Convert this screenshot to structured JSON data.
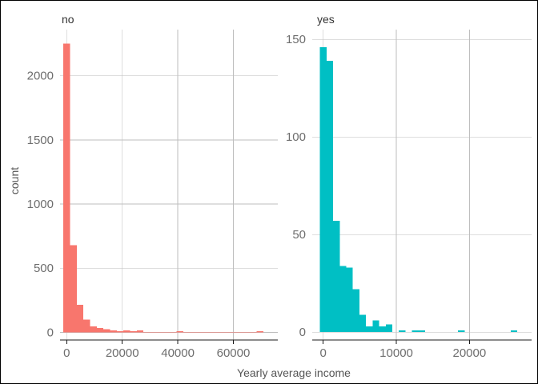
{
  "chart_data": [
    {
      "type": "bar",
      "panel": "no",
      "xlabel": "Yearly average income",
      "ylabel": "count",
      "color": "#F8766D",
      "bin_width": 2400,
      "bin_centers": [
        0,
        2400,
        4800,
        7200,
        9600,
        12000,
        14400,
        16800,
        19200,
        21600,
        24000,
        26400,
        28800,
        31200,
        33600,
        36000,
        38400,
        40800,
        43200,
        45600,
        48000,
        50400,
        52800,
        55200,
        57600,
        60000,
        62400,
        64800,
        67200,
        69600,
        72000
      ],
      "values": [
        2250,
        680,
        215,
        100,
        45,
        35,
        25,
        15,
        10,
        15,
        8,
        15,
        3,
        2,
        2,
        2,
        2,
        8,
        2,
        1,
        1,
        1,
        1,
        1,
        1,
        1,
        1,
        1,
        2,
        8,
        0
      ],
      "xticks": [
        0,
        20000,
        40000,
        60000
      ],
      "xtick_labels": [
        "0",
        "20000",
        "40000",
        "60000"
      ],
      "yticks": [
        0,
        500,
        1000,
        1500,
        2000
      ],
      "ytick_labels": [
        "0",
        "500",
        "1000",
        "1500",
        "2000"
      ],
      "xlim": [
        -2400,
        76000
      ],
      "ylim": [
        -60,
        2360
      ]
    },
    {
      "type": "bar",
      "panel": "yes",
      "xlabel": "Yearly average income",
      "ylabel": "count",
      "color": "#00BFC4",
      "bin_width": 900,
      "bin_centers": [
        0,
        900,
        1800,
        2700,
        3600,
        4500,
        5400,
        6300,
        7200,
        8100,
        9000,
        9900,
        10800,
        11700,
        12600,
        13500,
        14400,
        15300,
        16200,
        17100,
        18000,
        18900,
        19800,
        20700,
        21600,
        22500,
        23400,
        24300,
        25200,
        26100,
        27000
      ],
      "values": [
        146,
        139,
        57,
        34,
        33,
        22,
        9,
        3,
        6,
        3,
        4,
        0,
        1,
        0,
        1,
        1,
        0,
        0,
        0,
        0,
        0,
        1,
        0,
        0,
        0,
        0,
        0,
        0,
        0,
        1,
        0
      ],
      "xticks": [
        0,
        10000,
        20000
      ],
      "xtick_labels": [
        "0",
        "10000",
        "20000"
      ],
      "yticks": [
        0,
        50,
        100,
        150
      ],
      "ytick_labels": [
        "0",
        "50",
        "100",
        "150"
      ],
      "xlim": [
        -1500,
        28500
      ],
      "ylim": [
        -4,
        155
      ]
    }
  ],
  "strips": [
    "no",
    "yes"
  ],
  "axis_titles": {
    "x": "Yearly average income",
    "y": "count"
  },
  "colors": {
    "no": "#F8766D",
    "yes": "#00BFC4",
    "grid": "#bebebe"
  }
}
